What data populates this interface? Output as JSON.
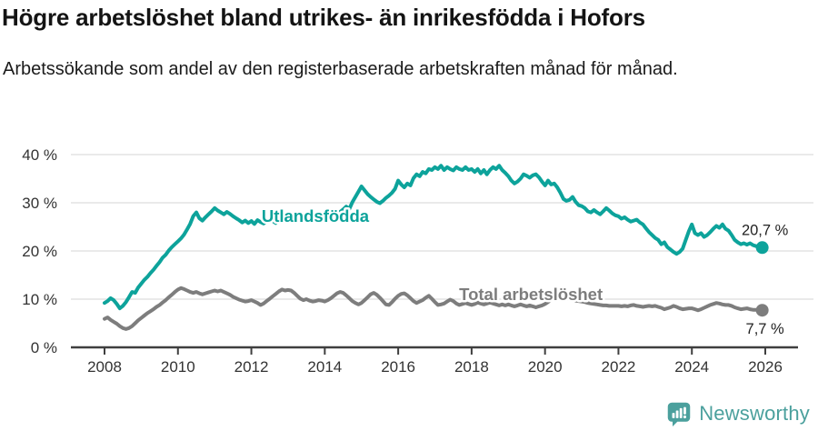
{
  "header": {
    "title": "Högre arbetslöshet bland utrikes- än inrikesfödda i Hofors",
    "subtitle": "Arbetssökande som andel av den registerbaserade arbetskraften månad för månad."
  },
  "chart_data": {
    "type": "line",
    "title": "Högre arbetslöshet bland utrikes- än inrikesfödda i Hofors",
    "xlabel": "",
    "ylabel": "",
    "x_start_year": 2008,
    "points_per_year": 12,
    "ylim": [
      0,
      42
    ],
    "grid": "horizontal",
    "y_ticks": [
      {
        "value": 0,
        "label": "0 %"
      },
      {
        "value": 10,
        "label": "10 %"
      },
      {
        "value": 20,
        "label": "20 %"
      },
      {
        "value": 30,
        "label": "30 %"
      },
      {
        "value": 40,
        "label": "40 %"
      }
    ],
    "x_ticks": [
      {
        "year": 2008,
        "label": "2008"
      },
      {
        "year": 2010,
        "label": "2010"
      },
      {
        "year": 2012,
        "label": "2012"
      },
      {
        "year": 2014,
        "label": "2014"
      },
      {
        "year": 2016,
        "label": "2016"
      },
      {
        "year": 2018,
        "label": "2018"
      },
      {
        "year": 2020,
        "label": "2020"
      },
      {
        "year": 2022,
        "label": "2022"
      },
      {
        "year": 2024,
        "label": "2024"
      },
      {
        "year": 2026,
        "label": "2026"
      }
    ],
    "colors": {
      "grid": "#e3e3e3",
      "axis": "#3f3f3f",
      "tick_text": "#333333",
      "value_label": "#222222"
    },
    "series": [
      {
        "name": "Total arbetslöshet",
        "color": "#7d7d7d",
        "end_label": "7,7 %",
        "end_label_position": "below",
        "label_at": {
          "year": 2017.66,
          "value": 9.8
        },
        "values": [
          5.9,
          6.2,
          5.7,
          5.3,
          4.9,
          4.4,
          4.0,
          3.8,
          4.0,
          4.4,
          5.0,
          5.6,
          6.1,
          6.6,
          7.1,
          7.5,
          7.9,
          8.4,
          8.8,
          9.3,
          9.8,
          10.4,
          10.9,
          11.5,
          12.0,
          12.3,
          12.1,
          11.8,
          11.5,
          11.3,
          11.5,
          11.2,
          11.0,
          11.2,
          11.4,
          11.6,
          11.8,
          11.6,
          11.8,
          11.5,
          11.2,
          10.9,
          10.5,
          10.2,
          9.9,
          9.7,
          9.5,
          9.6,
          9.8,
          9.5,
          9.2,
          8.8,
          9.1,
          9.6,
          10.1,
          10.6,
          11.1,
          11.6,
          12.0,
          11.8,
          11.9,
          11.8,
          11.3,
          10.7,
          10.1,
          9.8,
          10.0,
          9.7,
          9.5,
          9.6,
          9.8,
          9.7,
          9.5,
          9.8,
          10.2,
          10.7,
          11.2,
          11.5,
          11.3,
          10.8,
          10.2,
          9.6,
          9.2,
          8.9,
          9.2,
          9.8,
          10.4,
          11.0,
          11.3,
          10.9,
          10.3,
          9.6,
          8.9,
          8.8,
          9.4,
          10.1,
          10.7,
          11.1,
          11.2,
          10.8,
          10.2,
          9.6,
          9.2,
          9.5,
          9.8,
          10.3,
          10.7,
          10.1,
          9.4,
          8.8,
          8.9,
          9.1,
          9.5,
          9.9,
          9.6,
          9.1,
          8.8,
          9.0,
          9.2,
          9.0,
          8.8,
          9.0,
          9.3,
          9.1,
          8.9,
          9.1,
          9.3,
          9.1,
          8.9,
          8.7,
          8.9,
          8.7,
          8.9,
          8.7,
          8.5,
          8.7,
          8.9,
          8.7,
          8.5,
          8.7,
          8.5,
          8.3,
          8.5,
          8.7,
          9.0,
          9.4,
          10.0,
          10.6,
          10.9,
          10.7,
          10.4,
          10.2,
          10.0,
          9.9,
          9.7,
          9.6,
          9.5,
          9.4,
          9.2,
          9.1,
          9.0,
          8.9,
          8.8,
          8.7,
          8.7,
          8.6,
          8.6,
          8.6,
          8.6,
          8.5,
          8.6,
          8.5,
          8.7,
          8.8,
          8.6,
          8.5,
          8.4,
          8.5,
          8.6,
          8.5,
          8.6,
          8.4,
          8.2,
          7.9,
          8.1,
          8.3,
          8.6,
          8.4,
          8.1,
          7.9,
          8.0,
          8.1,
          8.1,
          7.9,
          7.7,
          7.9,
          8.2,
          8.5,
          8.8,
          9.0,
          9.2,
          9.1,
          8.9,
          8.8,
          8.8,
          8.6,
          8.3,
          8.1,
          7.9,
          8.0,
          8.1,
          7.9,
          7.8,
          7.8,
          7.7,
          7.7
        ]
      },
      {
        "name": "Utlandsfödda",
        "color": "#0da39b",
        "end_label": "20,7 %",
        "end_label_position": "above",
        "label_at": {
          "year": 2012.28,
          "value": 26.0
        },
        "values": [
          9.2,
          9.6,
          10.2,
          9.8,
          9.0,
          8.1,
          8.6,
          9.4,
          10.4,
          11.5,
          11.3,
          12.4,
          13.2,
          14.0,
          14.6,
          15.4,
          16.1,
          16.9,
          17.7,
          18.6,
          19.2,
          20.1,
          20.8,
          21.4,
          22.0,
          22.6,
          23.4,
          24.5,
          25.6,
          27.2,
          28.0,
          26.8,
          26.3,
          27.0,
          27.6,
          28.2,
          28.9,
          28.4,
          28.0,
          27.6,
          28.1,
          27.7,
          27.2,
          26.8,
          26.4,
          25.9,
          26.3,
          25.8,
          26.2,
          25.6,
          26.4,
          26.0,
          25.7,
          26.1,
          26.5,
          26.2,
          25.8,
          26.3,
          26.7,
          26.4,
          26.1,
          26.5,
          26.9,
          26.6,
          26.3,
          26.7,
          27.0,
          26.6,
          26.9,
          27.2,
          26.8,
          27.1,
          26.8,
          27.2,
          26.9,
          27.3,
          27.7,
          28.1,
          28.6,
          29.2,
          28.7,
          30.1,
          31.2,
          32.3,
          33.4,
          32.6,
          31.8,
          31.2,
          30.7,
          30.2,
          29.9,
          30.4,
          31.0,
          31.5,
          32.1,
          32.9,
          34.6,
          33.8,
          33.2,
          34.0,
          33.6,
          35.1,
          35.9,
          35.5,
          36.4,
          36.1,
          37.0,
          36.8,
          37.4,
          37.0,
          37.7,
          36.8,
          37.4,
          37.0,
          36.7,
          37.4,
          37.0,
          36.8,
          37.4,
          36.8,
          37.0,
          36.4,
          37.0,
          36.1,
          36.8,
          35.9,
          36.8,
          37.4,
          37.0,
          37.7,
          36.8,
          36.2,
          35.5,
          34.6,
          34.0,
          34.4,
          35.0,
          35.9,
          35.6,
          35.2,
          35.7,
          35.9,
          35.3,
          34.4,
          33.6,
          34.6,
          33.8,
          34.0,
          33.2,
          32.1,
          30.8,
          30.4,
          30.6,
          31.2,
          30.2,
          29.5,
          29.3,
          28.9,
          28.2,
          28.0,
          28.5,
          28.0,
          27.6,
          28.2,
          28.9,
          28.4,
          27.8,
          27.4,
          27.2,
          26.7,
          27.0,
          26.5,
          26.1,
          26.3,
          26.5,
          25.9,
          25.5,
          24.7,
          23.9,
          23.3,
          22.7,
          22.3,
          21.4,
          21.8,
          20.8,
          20.3,
          19.8,
          19.4,
          19.8,
          20.5,
          22.3,
          24.1,
          25.5,
          23.7,
          23.3,
          23.7,
          22.9,
          23.3,
          23.9,
          24.6,
          25.2,
          24.8,
          25.5,
          24.6,
          24.2,
          23.3,
          22.3,
          21.8,
          21.4,
          21.6,
          21.3,
          21.6,
          21.2,
          21.0,
          20.8,
          20.7
        ]
      }
    ]
  },
  "footer": {
    "brand": "Newsworthy",
    "brand_color": "#4ba09d",
    "logo_icon": "bar-chart-speech-bubble-icon"
  }
}
